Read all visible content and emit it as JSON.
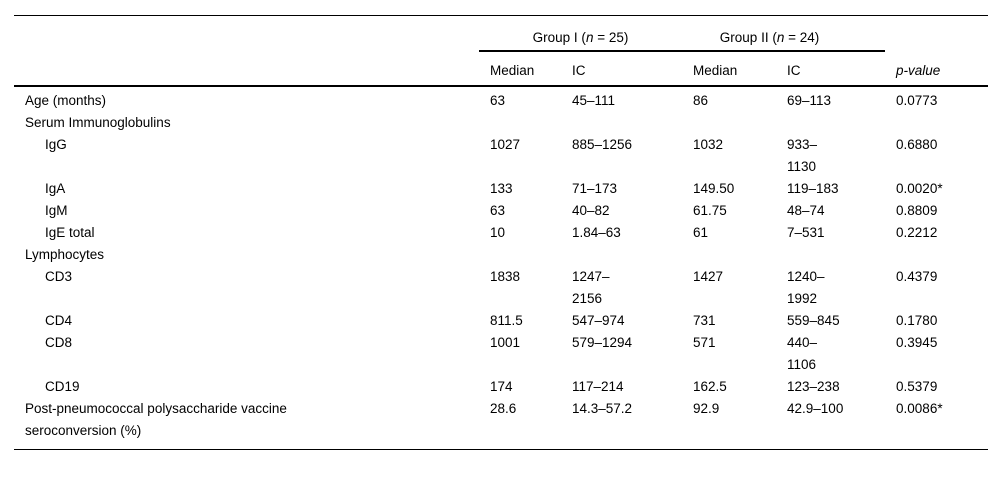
{
  "colors": {
    "background": "#ffffff",
    "text": "#000000",
    "rule": "#000000"
  },
  "header": {
    "group1": {
      "prefix": "Group I (",
      "n": "n",
      "suffix": " = 25)"
    },
    "group2": {
      "prefix": "Group II (",
      "n": "n",
      "suffix": " = 24)"
    },
    "median": "Median",
    "ic": "IC",
    "pvalue": "p-value"
  },
  "rows": [
    {
      "label": "Age (months)",
      "g1_median": "63",
      "g1_ic": "45–111",
      "g2_median": "86",
      "g2_ic": "69–113",
      "p": "0.0773"
    },
    {
      "label": "Serum Immunoglobulins"
    },
    {
      "label": "IgG",
      "g1_median": "1027",
      "g1_ic": "885–1256",
      "g2_median": "1032",
      "g2_ic": "933–\n1130",
      "p": "0.6880"
    },
    {
      "label": "IgA",
      "g1_median": "133",
      "g1_ic": "71–173",
      "g2_median": "149.50",
      "g2_ic": "119–183",
      "p": "0.0020*"
    },
    {
      "label": "IgM",
      "g1_median": "63",
      "g1_ic": "40–82",
      "g2_median": "61.75",
      "g2_ic": "48–74",
      "p": "0.8809"
    },
    {
      "label": "IgE total",
      "g1_median": "10",
      "g1_ic": "1.84–63",
      "g2_median": "61",
      "g2_ic": "7–531",
      "p": "0.2212"
    },
    {
      "label": "Lymphocytes"
    },
    {
      "label": "CD3",
      "g1_median": "1838",
      "g1_ic": "1247–\n2156",
      "g2_median": "1427",
      "g2_ic": "1240–\n1992",
      "p": "0.4379"
    },
    {
      "label": "CD4",
      "g1_median": "811.5",
      "g1_ic": "547–974",
      "g2_median": "731",
      "g2_ic": "559–845",
      "p": "0.1780"
    },
    {
      "label": "CD8",
      "g1_median": "1001",
      "g1_ic": "579–1294",
      "g2_median": "571",
      "g2_ic": "440–\n1106",
      "p": "0.3945"
    },
    {
      "label": "CD19",
      "g1_median": "174",
      "g1_ic": "117–214",
      "g2_median": "162.5",
      "g2_ic": "123–238",
      "p": "0.5379"
    },
    {
      "label": "Post-pneumococcal polysaccharide vaccine\nseroconversion (%)",
      "g1_median": "28.6",
      "g1_ic": "14.3–57.2",
      "g2_median": "92.9",
      "g2_ic": "42.9–100",
      "p": "0.0086*"
    }
  ]
}
